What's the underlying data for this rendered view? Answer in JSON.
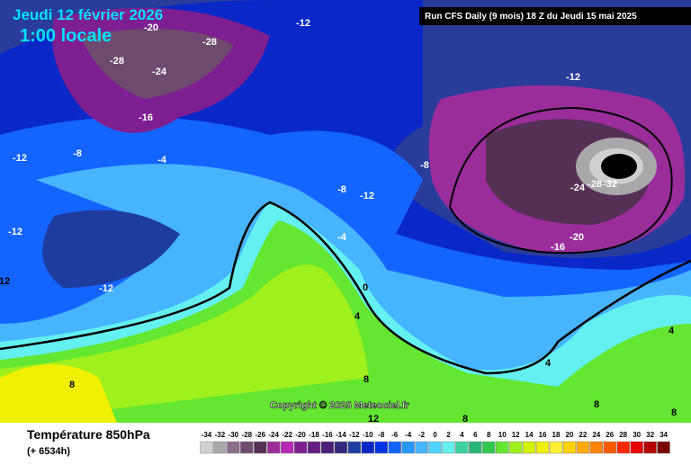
{
  "header": {
    "date": "Jeudi 12 février 2026",
    "time": "1:00 locale",
    "run": "Run CFS Daily (9 mois) 18 Z du Jeudi 15 mai 2025"
  },
  "copyright": "Copyright © 2025 Meteociel.fr",
  "footer": {
    "title": "Température 850hPa",
    "lead": "(+ 6534h)"
  },
  "contour_labels": [
    -20,
    -12,
    -28,
    -28,
    -24,
    -16,
    -8,
    -4,
    -12,
    -12,
    12,
    -12,
    -12,
    -8,
    -8,
    -12,
    -24,
    -28,
    -32,
    -20,
    -16,
    -4,
    0,
    4,
    4,
    4,
    8,
    8,
    8,
    8,
    8,
    12
  ],
  "colorbar": {
    "ticks": [
      -34,
      -32,
      -30,
      -28,
      -26,
      -24,
      -22,
      -20,
      -18,
      -16,
      -14,
      -12,
      -10,
      -8,
      -6,
      -4,
      -2,
      0,
      2,
      4,
      6,
      8,
      10,
      12,
      14,
      16,
      18,
      20,
      22,
      24,
      26,
      28,
      30,
      32,
      34
    ],
    "colors": [
      "#d0d0d0",
      "#a8a8a8",
      "#8a6e8a",
      "#6e4a6e",
      "#553055",
      "#9b2d9b",
      "#b428b4",
      "#7d1e91",
      "#641e82",
      "#4b1e78",
      "#32287d",
      "#1e3ca0",
      "#0a28c8",
      "#0032e6",
      "#1464ff",
      "#2896ff",
      "#46b4ff",
      "#50d2ff",
      "#64f0f0",
      "#3cd2a0",
      "#28b478",
      "#32c850",
      "#64e632",
      "#a0f01e",
      "#d2f000",
      "#f0f000",
      "#fff032",
      "#ffd200",
      "#ffaa00",
      "#ff8200",
      "#ff5a00",
      "#ff2800",
      "#e60000",
      "#b40000",
      "#780000"
    ]
  }
}
